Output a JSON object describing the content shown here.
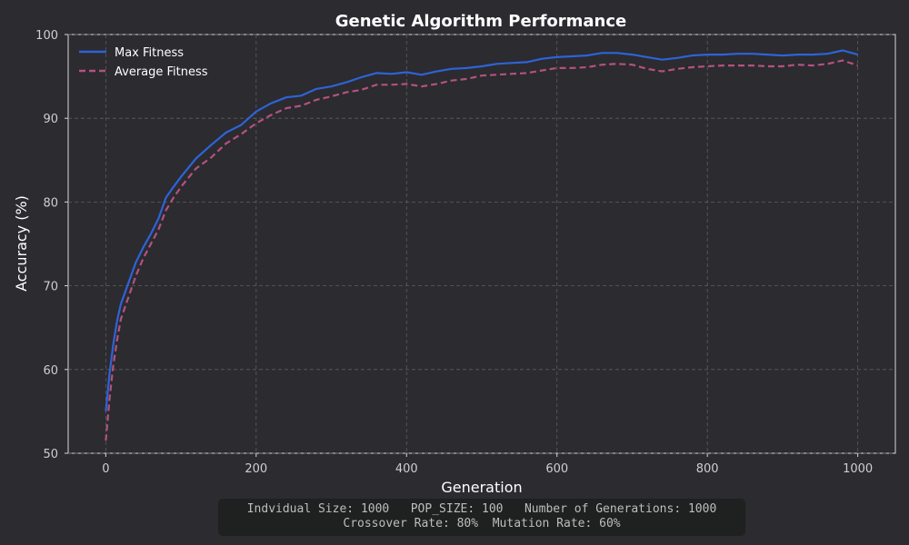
{
  "chart_data": {
    "type": "line",
    "title": "Genetic Algorithm Performance",
    "xlabel": "Generation",
    "ylabel": "Accuracy (%)",
    "xlim": [
      -50,
      1050
    ],
    "ylim": [
      50,
      100
    ],
    "xticks": [
      0,
      200,
      400,
      600,
      800,
      1000
    ],
    "yticks": [
      50,
      60,
      70,
      80,
      90,
      100
    ],
    "grid": true,
    "legend_position": "top-left",
    "x": [
      0,
      5,
      10,
      15,
      20,
      30,
      40,
      50,
      60,
      70,
      80,
      90,
      100,
      120,
      140,
      160,
      180,
      200,
      220,
      240,
      260,
      280,
      300,
      320,
      340,
      360,
      380,
      400,
      420,
      440,
      460,
      480,
      500,
      520,
      540,
      560,
      580,
      600,
      620,
      640,
      660,
      680,
      700,
      720,
      740,
      760,
      780,
      800,
      820,
      840,
      860,
      880,
      900,
      920,
      940,
      960,
      980,
      1000
    ],
    "series": [
      {
        "name": "Max Fitness",
        "color": "#2e63d6",
        "style": "solid",
        "values": [
          55.0,
          59.5,
          63.0,
          65.8,
          67.8,
          70.3,
          72.8,
          74.6,
          76.2,
          78.0,
          80.5,
          81.8,
          83.0,
          85.2,
          86.8,
          88.3,
          89.2,
          90.8,
          91.8,
          92.5,
          92.7,
          93.5,
          93.8,
          94.3,
          94.9,
          95.4,
          95.3,
          95.5,
          95.2,
          95.6,
          95.9,
          96.0,
          96.2,
          96.5,
          96.6,
          96.7,
          97.1,
          97.3,
          97.4,
          97.5,
          97.8,
          97.8,
          97.6,
          97.3,
          97.0,
          97.2,
          97.5,
          97.6,
          97.6,
          97.7,
          97.7,
          97.6,
          97.5,
          97.6,
          97.6,
          97.7,
          98.1,
          97.6
        ]
      },
      {
        "name": "Average Fitness",
        "color": "#b5517f",
        "style": "dashed",
        "values": [
          51.5,
          56.5,
          60.5,
          63.5,
          66.0,
          68.6,
          71.2,
          73.3,
          75.0,
          76.7,
          79.0,
          80.5,
          81.8,
          84.0,
          85.3,
          87.0,
          88.1,
          89.4,
          90.4,
          91.2,
          91.5,
          92.2,
          92.6,
          93.1,
          93.4,
          94.0,
          94.0,
          94.1,
          93.8,
          94.1,
          94.5,
          94.7,
          95.1,
          95.2,
          95.3,
          95.4,
          95.7,
          96.0,
          96.0,
          96.1,
          96.4,
          96.5,
          96.4,
          95.9,
          95.6,
          95.9,
          96.1,
          96.2,
          96.3,
          96.3,
          96.3,
          96.2,
          96.2,
          96.4,
          96.3,
          96.5,
          96.9,
          96.3
        ]
      }
    ]
  },
  "info": {
    "line1": "Indvidual Size: 1000   POP_SIZE: 100   Number of Generations: 1000",
    "line2": "Crossover Rate: 80%  Mutation Rate: 60%"
  }
}
